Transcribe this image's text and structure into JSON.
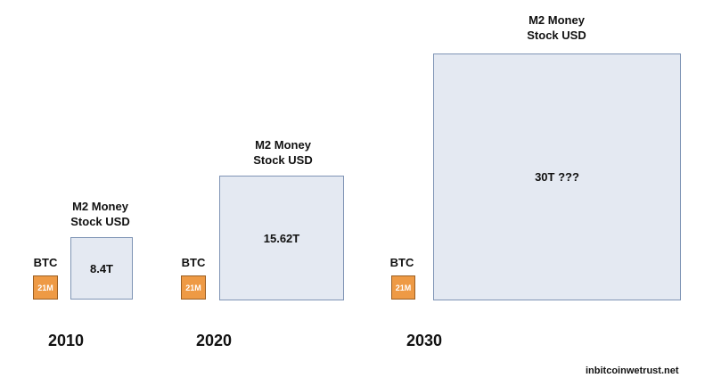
{
  "groups": [
    {
      "year": "2010",
      "btc_label": "BTC",
      "btc_supply": "21M",
      "m2_label_line1": "M2 Money",
      "m2_label_line2": "Stock USD",
      "m2_value": "8.4T"
    },
    {
      "year": "2020",
      "btc_label": "BTC",
      "btc_supply": "21M",
      "m2_label_line1": "M2 Money",
      "m2_label_line2": "Stock USD",
      "m2_value": "15.62T"
    },
    {
      "year": "2030",
      "btc_label": "BTC",
      "btc_supply": "21M",
      "m2_label_line1": "M2 Money",
      "m2_label_line2": "Stock USD",
      "m2_value": "30T ???"
    }
  ],
  "watermark": "inbitcoinwetrust.net",
  "colors": {
    "btc_fill": "#ee9a45",
    "m2_fill": "#e4e9f2",
    "m2_border": "#7f94b5"
  }
}
